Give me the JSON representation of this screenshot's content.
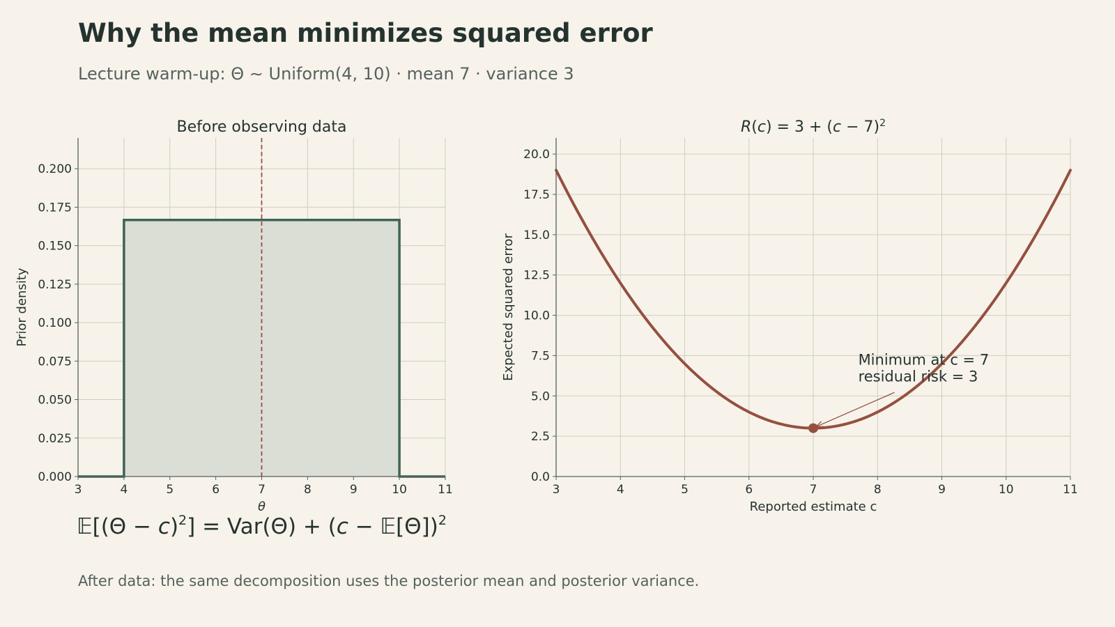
{
  "header": {
    "title": "Why the mean minimizes squared error",
    "subtitle": "Lecture warm-up: Θ ∼ Uniform(4, 10) · mean 7 · variance 3"
  },
  "footer": {
    "formula": {
      "lhs_open": "𝔼[(Θ − ",
      "lhs_c": "c",
      "lhs_close": ")",
      "lhs_exp": "2",
      "lhs_end": "] = Var(Θ) + (",
      "rhs_c": "c",
      "rhs_mid": " − 𝔼[Θ])",
      "rhs_exp": "2"
    },
    "note": "After data: the same decomposition uses the posterior mean and posterior variance."
  },
  "colors": {
    "background": "#f7f3ea",
    "prior_line": "#3f6358",
    "prior_fill": "#dbded4",
    "risk_line": "#95503f",
    "grid": "#cfcdc2",
    "axis": "#55625e"
  },
  "chart_data": [
    {
      "type": "area",
      "title": "Before observing data",
      "xlabel": "θ",
      "ylabel": "Prior density",
      "xlim": [
        3,
        11
      ],
      "ylim": [
        0,
        0.22
      ],
      "xticks": [
        3,
        4,
        5,
        6,
        7,
        8,
        9,
        10,
        11
      ],
      "yticks": [
        0.0,
        0.025,
        0.05,
        0.075,
        0.1,
        0.125,
        0.15,
        0.175,
        0.2
      ],
      "ytick_labels": [
        "0.000",
        "0.025",
        "0.050",
        "0.075",
        "0.100",
        "0.125",
        "0.150",
        "0.175",
        "0.200"
      ],
      "series": [
        {
          "x": [
            3,
            4,
            4,
            10,
            10,
            11
          ],
          "y": [
            0,
            0,
            0.1667,
            0.1667,
            0,
            0
          ]
        }
      ],
      "reference_line": {
        "x": 7,
        "style": "dashed"
      },
      "grid": true
    },
    {
      "type": "line",
      "title": "R(c) = 3 + (c − 7)²",
      "title_parts": {
        "R": "R",
        "open": "(",
        "c": "c",
        "mid": ") = 3 + (",
        "c2": "c",
        "end": " − 7)",
        "exp": "2"
      },
      "xlabel": "Reported estimate c",
      "ylabel": "Expected squared error",
      "xlim": [
        3,
        11
      ],
      "ylim": [
        0,
        21
      ],
      "xticks": [
        3,
        4,
        5,
        6,
        7,
        8,
        9,
        10,
        11
      ],
      "yticks": [
        0.0,
        2.5,
        5.0,
        7.5,
        10.0,
        12.5,
        15.0,
        17.5,
        20.0
      ],
      "ytick_labels": [
        "0.0",
        "2.5",
        "5.0",
        "7.5",
        "10.0",
        "12.5",
        "15.0",
        "17.5",
        "20.0"
      ],
      "function": {
        "formula": "3 + (c - 7)^2",
        "offset": 3,
        "center": 7
      },
      "minimum_point": {
        "x": 7,
        "y": 3
      },
      "annotation": {
        "lines": [
          "Minimum at c = 7",
          "residual risk = 3"
        ],
        "text_anchor": {
          "x": 7.7,
          "y": 6.9
        },
        "arrow_to": {
          "x": 7,
          "y": 3
        }
      },
      "grid": true
    }
  ]
}
